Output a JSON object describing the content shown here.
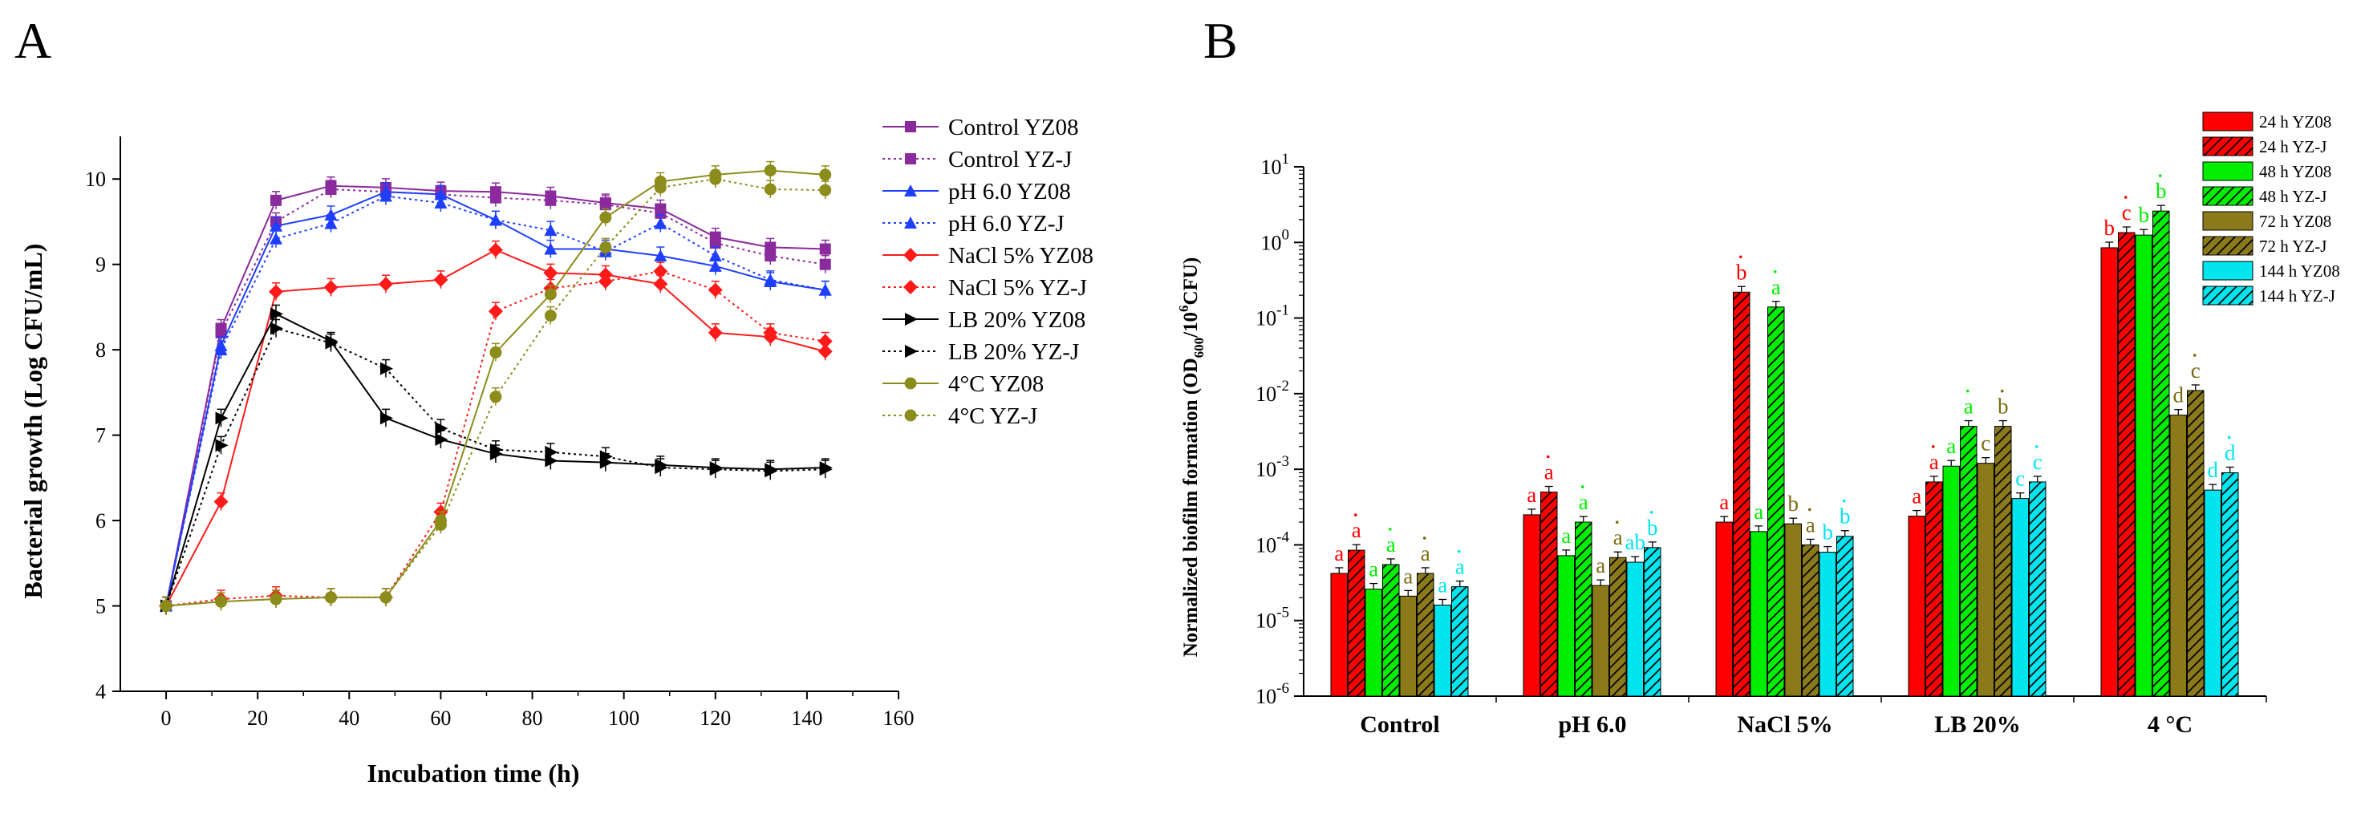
{
  "panelA": {
    "letter": "A",
    "chart_data": {
      "type": "line",
      "title": "",
      "xlabel": "Incubation time (h)",
      "ylabel": "Bacterial growth (Log CFU/mL)",
      "xlim": [
        -10,
        160
      ],
      "ylim": [
        4,
        10.5
      ],
      "xticks": [
        "0",
        "20",
        "40",
        "60",
        "80",
        "100",
        "120",
        "140",
        "160"
      ],
      "yticks": [
        "4",
        "5",
        "6",
        "7",
        "8",
        "9",
        "10"
      ],
      "x": [
        0,
        12,
        24,
        36,
        48,
        60,
        72,
        84,
        96,
        108,
        120,
        132,
        144
      ],
      "legend_position": "right",
      "series": [
        {
          "name": "Control YZ08",
          "color": "#8b2a9c",
          "marker": "square",
          "dashed": false,
          "values": [
            5.0,
            8.25,
            9.75,
            9.92,
            9.9,
            9.86,
            9.85,
            9.8,
            9.72,
            9.65,
            9.32,
            9.2,
            9.18
          ]
        },
        {
          "name": "Control YZ-J",
          "color": "#8b2a9c",
          "marker": "square",
          "dashed": true,
          "values": [
            5.0,
            8.2,
            9.5,
            9.88,
            9.85,
            9.82,
            9.78,
            9.75,
            9.7,
            9.6,
            9.25,
            9.1,
            9.0
          ]
        },
        {
          "name": "pH 6.0 YZ08",
          "color": "#1f3fff",
          "marker": "triangle",
          "dashed": false,
          "values": [
            5.0,
            8.05,
            9.45,
            9.58,
            9.85,
            9.82,
            9.52,
            9.18,
            9.18,
            9.1,
            8.98,
            8.8,
            8.7
          ]
        },
        {
          "name": "pH 6.0 YZ-J",
          "color": "#1f3fff",
          "marker": "triangle",
          "dashed": true,
          "values": [
            5.0,
            8.0,
            9.3,
            9.48,
            9.8,
            9.72,
            9.52,
            9.4,
            9.15,
            9.48,
            9.1,
            8.82,
            8.7
          ]
        },
        {
          "name": "NaCl 5% YZ08",
          "color": "#ff1a1a",
          "marker": "diamond",
          "dashed": false,
          "values": [
            5.0,
            6.22,
            8.68,
            8.73,
            8.77,
            8.82,
            9.17,
            8.9,
            8.88,
            8.77,
            8.2,
            8.15,
            7.98
          ]
        },
        {
          "name": "NaCl 5% YZ-J",
          "color": "#ff1a1a",
          "marker": "diamond",
          "dashed": true,
          "values": [
            5.0,
            5.08,
            5.12,
            5.1,
            5.1,
            6.1,
            8.45,
            8.72,
            8.8,
            8.92,
            8.7,
            8.2,
            8.1
          ]
        },
        {
          "name": "LB 20% YZ08",
          "color": "#000000",
          "marker": "triangle-right",
          "dashed": false,
          "values": [
            5.0,
            7.2,
            8.42,
            8.1,
            7.2,
            6.95,
            6.78,
            6.7,
            6.68,
            6.65,
            6.62,
            6.6,
            6.62
          ]
        },
        {
          "name": "LB 20% YZ-J",
          "color": "#000000",
          "marker": "triangle-right",
          "dashed": true,
          "values": [
            5.0,
            6.88,
            8.25,
            8.08,
            7.78,
            7.08,
            6.83,
            6.8,
            6.75,
            6.62,
            6.6,
            6.58,
            6.6
          ]
        },
        {
          "name": "4°C YZ08",
          "color": "#8c8c1a",
          "marker": "circle",
          "dashed": false,
          "values": [
            5.0,
            5.05,
            5.08,
            5.1,
            5.1,
            6.0,
            7.97,
            8.65,
            9.55,
            9.97,
            10.05,
            10.1,
            10.05
          ]
        },
        {
          "name": "4°C YZ-J",
          "color": "#8c8c1a",
          "marker": "circle",
          "dashed": true,
          "values": [
            5.0,
            5.05,
            5.08,
            5.1,
            5.1,
            5.95,
            7.45,
            8.4,
            9.2,
            9.9,
            10.0,
            9.88,
            9.87
          ]
        }
      ]
    }
  },
  "panelB": {
    "letter": "B",
    "chart_data": {
      "type": "bar",
      "scale": "log",
      "title": "",
      "xlabel": "",
      "ylabel": "Normalized biofilm formation (OD600/10^6 CFU)",
      "ylabel_main": "Normalized biofilm formation (OD",
      "ylabel_sub": "600",
      "ylabel_mid": "/10",
      "ylabel_sup": "6",
      "ylabel_end": "CFU)",
      "ylim_exponents": [
        -6,
        1
      ],
      "ytick_base": "10",
      "ytick_exponents": [
        "1",
        "0",
        "-1",
        "-2",
        "-3",
        "-4",
        "-5",
        "-6"
      ],
      "categories": [
        "Control",
        "pH 6.0",
        "NaCl 5%",
        "LB 20%",
        "4 °C"
      ],
      "legend_position": "top-right",
      "series": [
        {
          "name": "24 h YZ08",
          "color": "#ff0000",
          "hatched": false,
          "values": [
            4.2e-05,
            0.00025,
            0.0002,
            0.00024,
            0.85
          ],
          "letters": [
            "a",
            "a",
            "a",
            "a",
            "b"
          ]
        },
        {
          "name": "24 h YZ-J",
          "color": "#ff0000",
          "hatched": true,
          "values": [
            8.5e-05,
            0.0005,
            0.22,
            0.00068,
            1.35
          ],
          "letters": [
            "a",
            "a",
            "b",
            "a",
            "c"
          ]
        },
        {
          "name": "48 h YZ08",
          "color": "#00ee00",
          "hatched": false,
          "values": [
            2.6e-05,
            7.2e-05,
            0.00015,
            0.0011,
            1.25
          ],
          "letters": [
            "a",
            "a",
            "a",
            "a",
            "b"
          ]
        },
        {
          "name": "48 h YZ-J",
          "color": "#00ee00",
          "hatched": true,
          "values": [
            5.5e-05,
            0.0002,
            0.14,
            0.0037,
            2.6
          ],
          "letters": [
            "a",
            "a",
            "a",
            "a",
            "b"
          ]
        },
        {
          "name": "72 h YZ08",
          "color": "#8b7a1a",
          "hatched": false,
          "values": [
            2.1e-05,
            2.9e-05,
            0.00019,
            0.0012,
            0.0052
          ],
          "letters": [
            "a",
            "a",
            "b",
            "c",
            "d"
          ]
        },
        {
          "name": "72 h YZ-J",
          "color": "#8b7a1a",
          "hatched": true,
          "values": [
            4.2e-05,
            6.8e-05,
            0.0001,
            0.0037,
            0.011
          ],
          "letters": [
            "a",
            "a",
            "a",
            "b",
            "c"
          ]
        },
        {
          "name": "144 h YZ08",
          "color": "#00e5ee",
          "hatched": false,
          "values": [
            1.6e-05,
            5.9e-05,
            8e-05,
            0.00041,
            0.00053
          ],
          "letters": [
            "a",
            "ab",
            "b",
            "c",
            "d"
          ]
        },
        {
          "name": "144 h YZ-J",
          "color": "#00e5ee",
          "hatched": true,
          "values": [
            2.8e-05,
            9.2e-05,
            0.00013,
            0.00068,
            0.0009
          ],
          "letters": [
            "a",
            "b",
            "b",
            "c",
            "d"
          ]
        }
      ]
    }
  }
}
